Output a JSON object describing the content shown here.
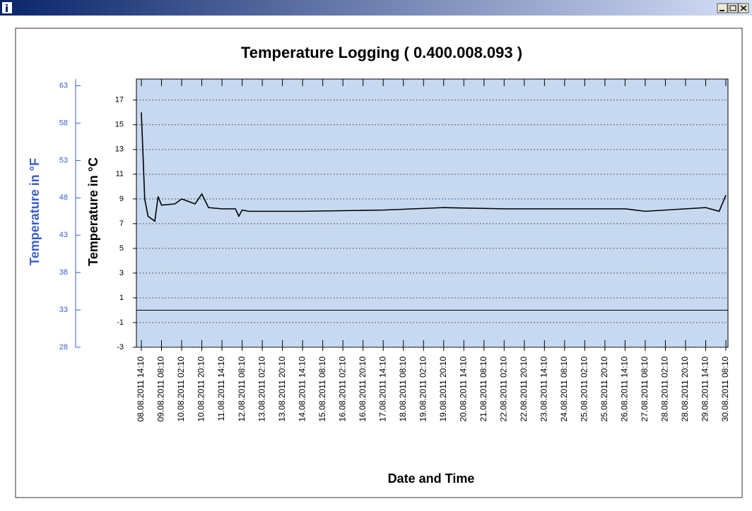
{
  "chart_data": {
    "type": "line",
    "title": "Temperature Logging ( 0.400.008.093 )",
    "x_label": "Date and Time",
    "y_label": "Temperature in °C",
    "y2_label": "Temperature in °F",
    "color": "#000000",
    "y2_color": "#3a5fc8",
    "plot_background": "#c6d9f0",
    "grid": true,
    "reference_line": 0,
    "xlim": [
      "08.08.2011 14:10",
      "30.08.2011 08:10"
    ],
    "xticks": [
      "08.08.2011 14:10",
      "09.08.2011 08:10",
      "10.08.2011 02:10",
      "10.08.2011 20:10",
      "11.08.2011 14:10",
      "12.08.2011 08:10",
      "13.08.2011 02:10",
      "13.08.2011 20:10",
      "14.08.2011 14:10",
      "15.08.2011 08:10",
      "16.08.2011 02:10",
      "16.08.2011 20:10",
      "17.08.2011 14:10",
      "18.08.2011 08:10",
      "19.08.2011 02:10",
      "19.08.2011 20:10",
      "20.08.2011 14:10",
      "21.08.2011 08:10",
      "22.08.2011 02:10",
      "22.08.2011 20:10",
      "23.08.2011 14:10",
      "24.08.2011 08:10",
      "25.08.2011 02:10",
      "25.08.2011 20:10",
      "26.08.2011 14:10",
      "27.08.2011 08:10",
      "28.08.2011 02:10",
      "28.08.2011 20:10",
      "29.08.2011 14:10",
      "30.08.2011 08:10"
    ],
    "ylim": [
      -3,
      18.7
    ],
    "yticks": [
      -3,
      -1,
      1,
      3,
      5,
      7,
      9,
      11,
      13,
      15,
      17
    ],
    "y2lim": [
      28,
      63.9
    ],
    "y2ticks": [
      28,
      33,
      38,
      43,
      48,
      53,
      58,
      63
    ],
    "x": [
      "08.08.2011 14:10",
      "08.08.2011 17:10",
      "08.08.2011 20:10",
      "09.08.2011 02:10",
      "09.08.2011 05:10",
      "09.08.2011 08:10",
      "09.08.2011 20:10",
      "10.08.2011 02:10",
      "10.08.2011 08:10",
      "10.08.2011 14:10",
      "10.08.2011 20:10",
      "11.08.2011 02:10",
      "11.08.2011 14:10",
      "12.08.2011 02:10",
      "12.08.2011 05:10",
      "12.08.2011 08:10",
      "12.08.2011 14:10",
      "14.08.2011 14:10",
      "17.08.2011 14:10",
      "19.08.2011 20:10",
      "22.08.2011 02:10",
      "26.08.2011 14:10",
      "27.08.2011 08:10",
      "29.08.2011 14:10",
      "30.08.2011 02:10",
      "30.08.2011 08:10"
    ],
    "values": [
      16,
      9.0,
      7.6,
      7.2,
      9.2,
      8.5,
      8.6,
      9.0,
      8.8,
      8.6,
      9.4,
      8.3,
      8.2,
      8.2,
      7.6,
      8.1,
      8.0,
      8.0,
      8.1,
      8.3,
      8.2,
      8.2,
      8.0,
      8.3,
      8.0,
      9.3
    ]
  }
}
